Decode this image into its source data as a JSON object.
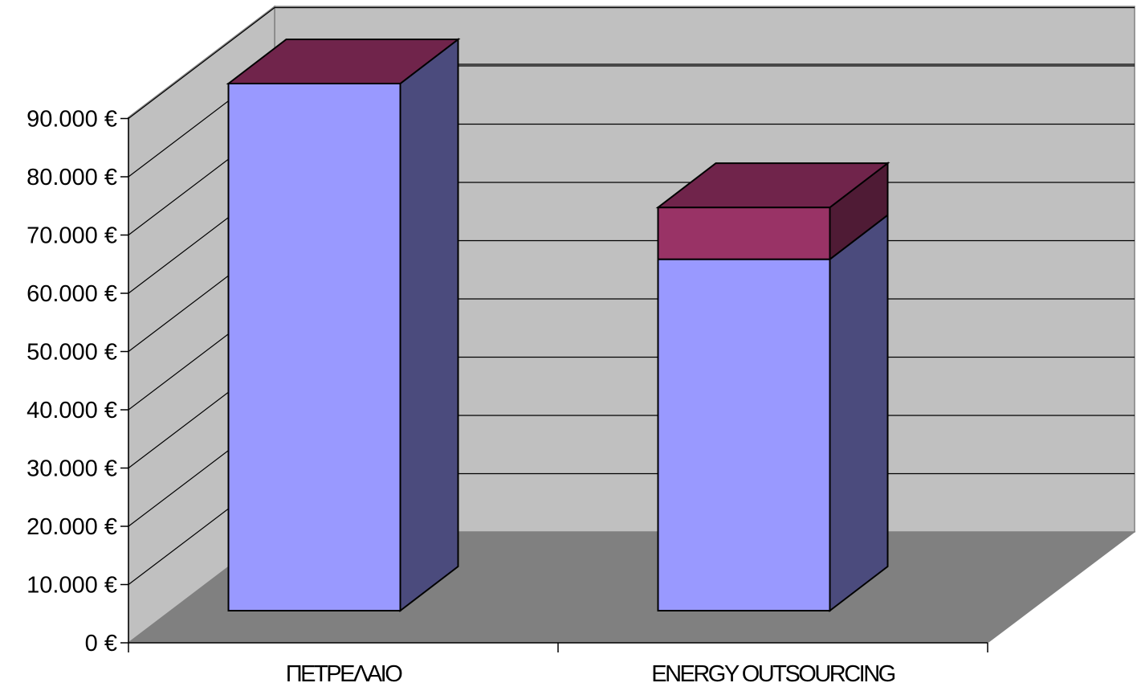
{
  "chart_data": {
    "type": "bar",
    "stacked": true,
    "three_d": true,
    "title": "",
    "xlabel": "",
    "ylabel": "",
    "categories": [
      "ΠΕΤΡΕΛΑΙΟ",
      "ENERGY OUTSOURCING"
    ],
    "series": [
      {
        "values": [
          91500,
          61000
        ],
        "color": "#9999FF",
        "side_color": "#4B4B7D"
      },
      {
        "values": [
          0,
          9000
        ],
        "color": "#993366",
        "side_color": "#4F1B35",
        "top_color": "#70244B"
      }
    ],
    "ylim": [
      0,
      90000
    ],
    "y_ticks": [
      0,
      10000,
      20000,
      30000,
      40000,
      50000,
      60000,
      70000,
      80000,
      90000
    ],
    "y_tick_labels": [
      "0 €",
      "10.000 €",
      "20.000 €",
      "30.000 €",
      "40.000 €",
      "50.000 €",
      "60.000 €",
      "70.000 €",
      "80.000 €",
      "90.000 €"
    ],
    "grid": true,
    "legend": "none",
    "colors": {
      "back_wall": "#C0C0C0",
      "side_wall": "#C0C0C0",
      "floor": "#808080",
      "gridline": "#000000"
    }
  }
}
